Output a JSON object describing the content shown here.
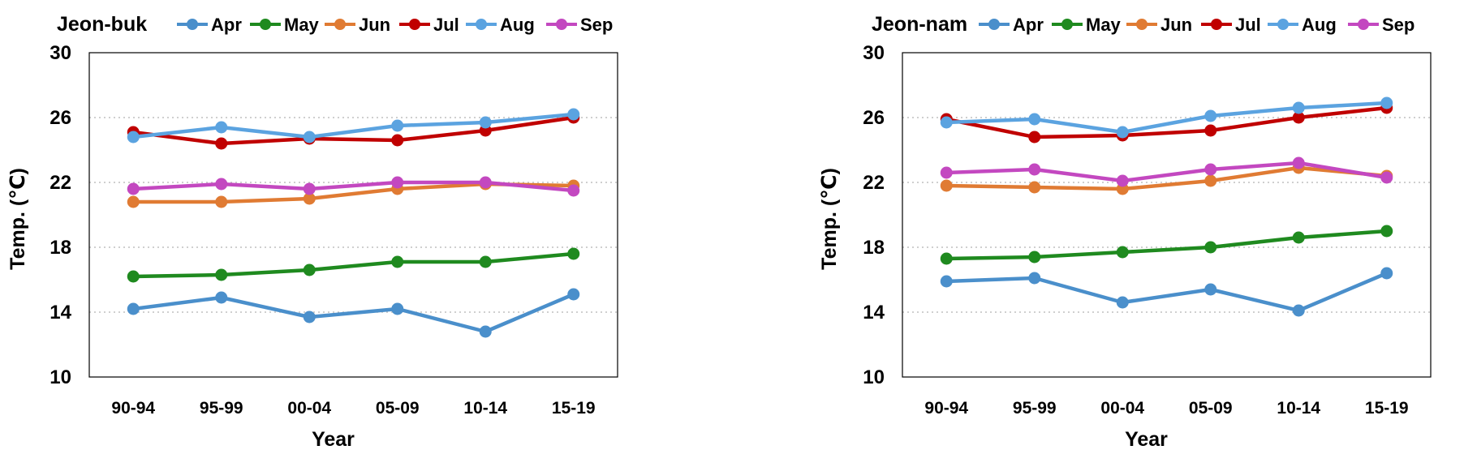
{
  "chart_data": [
    {
      "type": "line",
      "title": "Jeon-buk",
      "xlabel": "Year",
      "ylabel": "Temp. (℃)",
      "categories": [
        "90-94",
        "95-99",
        "00-04",
        "05-09",
        "10-14",
        "15-19"
      ],
      "ylim": [
        10,
        30
      ],
      "yticks": [
        10,
        14,
        18,
        22,
        26,
        30
      ],
      "grid": "horizontal dotted",
      "legend_position": "top",
      "series": [
        {
          "name": "Apr",
          "color": "#4a8fcb",
          "values": [
            14.2,
            14.9,
            13.7,
            14.2,
            12.8,
            15.1
          ]
        },
        {
          "name": "May",
          "color": "#1f8a1f",
          "values": [
            16.2,
            16.3,
            16.6,
            17.1,
            17.1,
            17.6
          ]
        },
        {
          "name": "Jun",
          "color": "#e07b33",
          "values": [
            20.8,
            20.8,
            21.0,
            21.6,
            21.9,
            21.8
          ]
        },
        {
          "name": "Jul",
          "color": "#c00000",
          "values": [
            25.1,
            24.4,
            24.7,
            24.6,
            25.2,
            26.0
          ]
        },
        {
          "name": "Aug",
          "color": "#5ba3e0",
          "values": [
            24.8,
            25.4,
            24.8,
            25.5,
            25.7,
            26.2
          ]
        },
        {
          "name": "Sep",
          "color": "#c348c0",
          "values": [
            21.6,
            21.9,
            21.6,
            22.0,
            22.0,
            21.5
          ]
        }
      ]
    },
    {
      "type": "line",
      "title": "Jeon-nam",
      "xlabel": "Year",
      "ylabel": "Temp. (℃)",
      "categories": [
        "90-94",
        "95-99",
        "00-04",
        "05-09",
        "10-14",
        "15-19"
      ],
      "ylim": [
        10,
        30
      ],
      "yticks": [
        10,
        14,
        18,
        22,
        26,
        30
      ],
      "grid": "horizontal dotted",
      "legend_position": "top",
      "series": [
        {
          "name": "Apr",
          "color": "#4a8fcb",
          "values": [
            15.9,
            16.1,
            14.6,
            15.4,
            14.1,
            16.4
          ]
        },
        {
          "name": "May",
          "color": "#1f8a1f",
          "values": [
            17.3,
            17.4,
            17.7,
            18.0,
            18.6,
            19.0
          ]
        },
        {
          "name": "Jun",
          "color": "#e07b33",
          "values": [
            21.8,
            21.7,
            21.6,
            22.1,
            22.9,
            22.4
          ]
        },
        {
          "name": "Jul",
          "color": "#c00000",
          "values": [
            25.9,
            24.8,
            24.9,
            25.2,
            26.0,
            26.6
          ]
        },
        {
          "name": "Aug",
          "color": "#5ba3e0",
          "values": [
            25.7,
            25.9,
            25.1,
            26.1,
            26.6,
            26.9
          ]
        },
        {
          "name": "Sep",
          "color": "#c348c0",
          "values": [
            22.6,
            22.8,
            22.1,
            22.8,
            23.2,
            22.3
          ]
        }
      ]
    }
  ]
}
